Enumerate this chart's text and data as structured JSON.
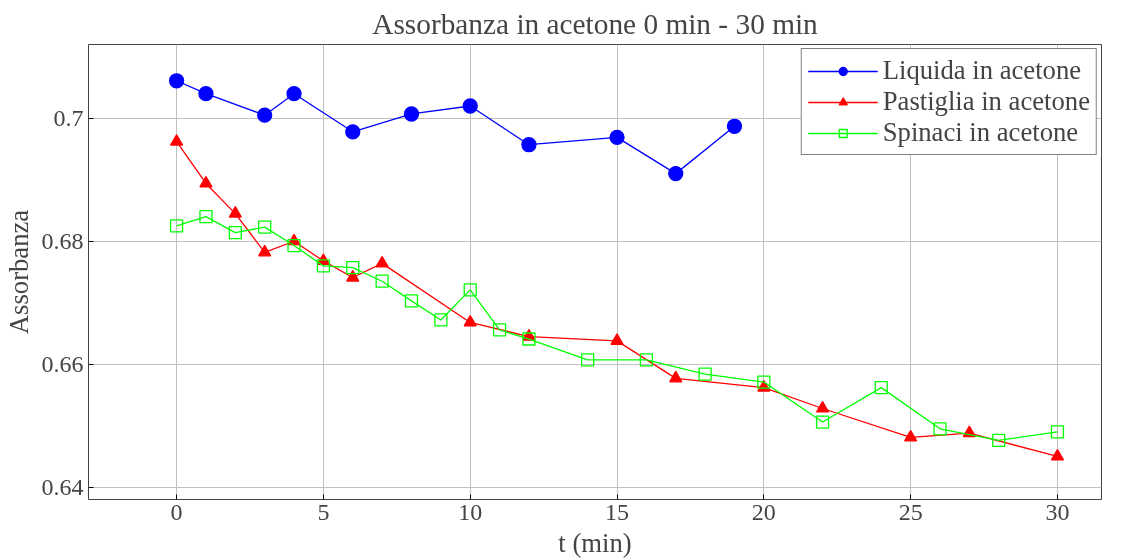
{
  "chart_data": {
    "type": "line",
    "title": "Assorbanza in acetone 0 min - 30 min",
    "xlabel": "t (min)",
    "ylabel": "Assorbanza",
    "xlim": [
      -3,
      31.5
    ],
    "ylim": [
      0.638,
      0.712
    ],
    "xticks": [
      0,
      5,
      10,
      15,
      20,
      25,
      30
    ],
    "yticks": [
      0.64,
      0.66,
      0.68,
      0.7
    ],
    "grid": true,
    "legend": "top right",
    "line_style": "solid",
    "series": [
      {
        "name": "Liquida in acetone",
        "color": "#0000ff",
        "marker": "circle",
        "x": [
          0,
          1,
          3,
          4,
          6,
          8,
          10,
          12,
          15,
          17,
          19
        ],
        "values": [
          0.7061,
          0.704,
          0.7005,
          0.704,
          0.6978,
          0.7007,
          0.702,
          0.6957,
          0.6969,
          0.691,
          0.6987
        ]
      },
      {
        "name": "Pastiglia in acetone",
        "color": "#ff0000",
        "marker": "triangle",
        "x": [
          0,
          1,
          2,
          3,
          4,
          5,
          6,
          7,
          10,
          12,
          15,
          17,
          20,
          22,
          25,
          27,
          30
        ],
        "values": [
          0.6962,
          0.6894,
          0.6845,
          0.6782,
          0.68,
          0.6768,
          0.6741,
          0.6764,
          0.6668,
          0.6645,
          0.6638,
          0.6577,
          0.6562,
          0.6528,
          0.6481,
          0.6488,
          0.645
        ]
      },
      {
        "name": "Spinaci in acetone",
        "color": "#00ff00",
        "marker": "square",
        "x": [
          0,
          1,
          2,
          3,
          4,
          5,
          6,
          7,
          8,
          9,
          10,
          11,
          12,
          14,
          16,
          18,
          20,
          22,
          24,
          26,
          28,
          30
        ],
        "values": [
          0.6825,
          0.684,
          0.6814,
          0.6823,
          0.6793,
          0.676,
          0.6757,
          0.6735,
          0.6703,
          0.6672,
          0.6721,
          0.6656,
          0.6641,
          0.6607,
          0.6607,
          0.6584,
          0.6571,
          0.6506,
          0.6562,
          0.6495,
          0.6476,
          0.649
        ]
      }
    ]
  }
}
